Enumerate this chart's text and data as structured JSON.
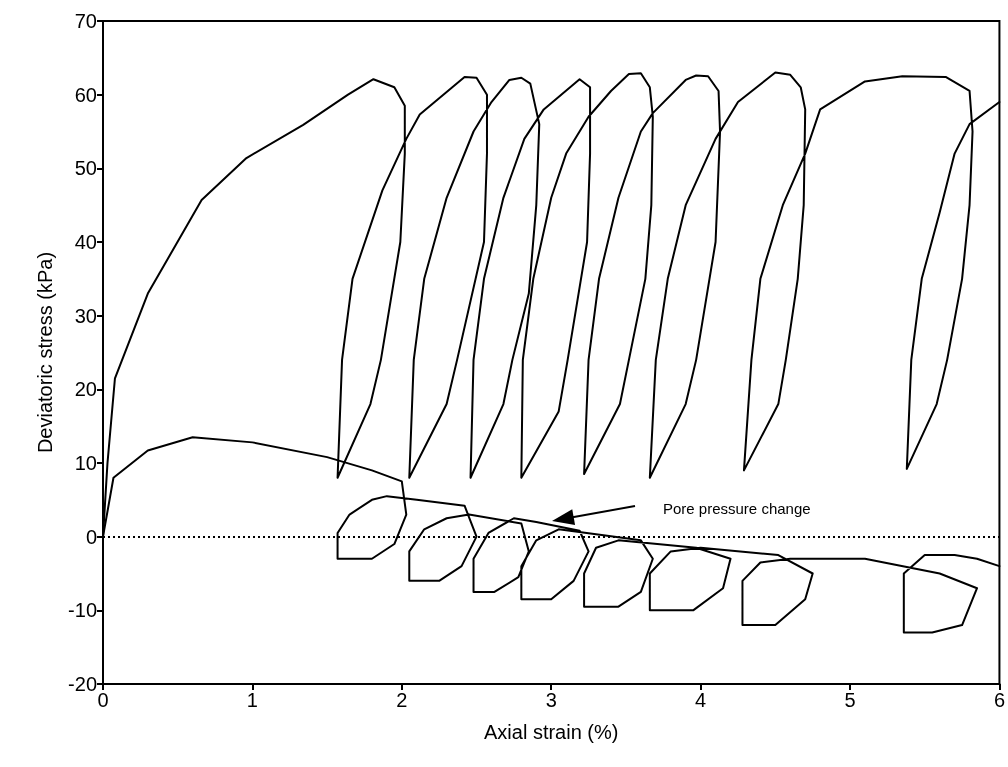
{
  "chart_data": {
    "type": "line",
    "xlabel": "Axial strain (%)",
    "ylabel": "Deviatoric stress (kPa)",
    "xlim": [
      0,
      6
    ],
    "xticks": [
      0,
      1,
      2,
      3,
      4,
      5,
      6
    ],
    "ylim": [
      -20,
      70
    ],
    "yticks": [
      -20,
      -10,
      0,
      10,
      20,
      30,
      40,
      50,
      60,
      70
    ],
    "grid": false,
    "marker": "none",
    "line_style": "solid",
    "series": [
      {
        "color": "#000000",
        "x": [
          0,
          0.03,
          0.08,
          0.3,
          0.66,
          0.96,
          1.34,
          1.64,
          1.81,
          1.95,
          2.02,
          2.02,
          1.99,
          1.86,
          1.79,
          1.57,
          1.6,
          1.67,
          1.87,
          2.03,
          2.12,
          2.42,
          2.5,
          2.57,
          2.57,
          2.55,
          2.37,
          2.3,
          2.05,
          2.08,
          2.15,
          2.3,
          2.48,
          2.6,
          2.72,
          2.8,
          2.86,
          2.92,
          2.9,
          2.85,
          2.74,
          2.68,
          2.46,
          2.48,
          2.55,
          2.68,
          2.82,
          2.95,
          3.19,
          3.26,
          3.26,
          3.24,
          3.11,
          3.05,
          2.8,
          2.81,
          2.88,
          3.0,
          3.1,
          3.25,
          3.4,
          3.52,
          3.6,
          3.66,
          3.68,
          3.67,
          3.63,
          3.52,
          3.46,
          3.22,
          3.25,
          3.32,
          3.45,
          3.6,
          3.68,
          3.9,
          3.97,
          4.05,
          4.12,
          4.13,
          4.1,
          3.97,
          3.9,
          3.66,
          3.7,
          3.78,
          3.9,
          4.1,
          4.25,
          4.5,
          4.6,
          4.67,
          4.7,
          4.69,
          4.65,
          4.57,
          4.52,
          4.29,
          4.34,
          4.4,
          4.55,
          4.7,
          4.8,
          5.1,
          5.35,
          5.64,
          5.8,
          5.82,
          5.8,
          5.75,
          5.65,
          5.58,
          5.38,
          5.41,
          5.48,
          5.6,
          5.7,
          5.8,
          6.0
        ],
        "values": [
          0,
          10,
          21.5,
          33,
          45.7,
          51.4,
          55.9,
          60,
          62.1,
          61,
          58.5,
          52,
          40,
          24,
          18,
          8,
          24,
          35,
          47,
          54,
          57.3,
          62.4,
          62.3,
          60,
          52,
          40,
          24,
          18,
          8,
          24,
          35,
          46,
          55,
          59,
          62,
          62.3,
          61.5,
          56,
          45,
          33,
          24,
          18,
          8,
          24,
          35,
          46,
          54,
          58,
          62.1,
          61,
          52,
          40,
          24,
          17,
          8,
          24,
          35,
          46,
          52,
          57,
          60.5,
          62.8,
          62.9,
          61,
          57,
          45,
          35,
          24,
          18,
          8.5,
          24,
          35,
          46,
          55,
          57.5,
          62,
          62.6,
          62.5,
          60.5,
          55,
          40,
          24,
          18,
          8,
          24,
          35,
          45,
          54,
          59,
          63,
          62.7,
          61,
          58,
          45,
          35,
          24,
          18,
          9,
          24,
          35,
          45,
          52,
          58,
          61.8,
          62.5,
          62.4,
          60.5,
          55,
          45,
          35,
          24,
          18,
          9.2,
          24,
          35,
          44,
          52,
          56,
          59
        ]
      },
      {
        "color": "#000000",
        "x": [
          0,
          0.07,
          0.3,
          0.6,
          1.0,
          1.5,
          1.8,
          2.0,
          2.03,
          1.95,
          1.8,
          1.57,
          1.57,
          1.65,
          1.8,
          1.9,
          2.1,
          2.42,
          2.5,
          2.4,
          2.25,
          2.05,
          2.05,
          2.15,
          2.3,
          2.45,
          2.8,
          2.85,
          2.78,
          2.62,
          2.48,
          2.48,
          2.58,
          2.75,
          2.9,
          3.19,
          3.25,
          3.15,
          3.0,
          2.8,
          2.8,
          2.9,
          3.05,
          3.6,
          3.68,
          3.6,
          3.45,
          3.22,
          3.22,
          3.3,
          3.45,
          3.97,
          4.2,
          4.15,
          3.95,
          3.66,
          3.66,
          3.8,
          4.0,
          4.52,
          4.75,
          4.7,
          4.5,
          4.28,
          4.28,
          4.4,
          4.6,
          5.1,
          5.6,
          5.85,
          5.75,
          5.55,
          5.36,
          5.36,
          5.5,
          5.7,
          5.85,
          6.0
        ],
        "values": [
          0,
          8,
          11.7,
          13.5,
          12.8,
          10.8,
          9,
          7.5,
          3,
          -1,
          -3,
          -3,
          0.5,
          3,
          5,
          5.5,
          5,
          4.2,
          0,
          -4,
          -6,
          -6,
          -2,
          1,
          2.5,
          3,
          1.8,
          -2,
          -5.5,
          -7.5,
          -7.5,
          -3,
          0.5,
          2.5,
          2,
          0.8,
          -2,
          -6,
          -8.5,
          -8.5,
          -4,
          -0.5,
          1,
          -0.5,
          -3,
          -7.5,
          -9.5,
          -9.5,
          -5,
          -1.5,
          -0.5,
          -1.5,
          -3,
          -7,
          -10,
          -10,
          -5,
          -2,
          -1.5,
          -2.5,
          -5,
          -8.5,
          -12,
          -12,
          -6,
          -3.5,
          -3,
          -3,
          -5,
          -7,
          -12,
          -13,
          -13,
          -5,
          -2.5,
          -2.5,
          -3,
          -4
        ]
      }
    ],
    "ref_lines": [
      {
        "axis": "y",
        "value": 0,
        "color": "#000000",
        "line_style": "dotted"
      }
    ],
    "annotations": [
      "Pore pressure change"
    ]
  }
}
